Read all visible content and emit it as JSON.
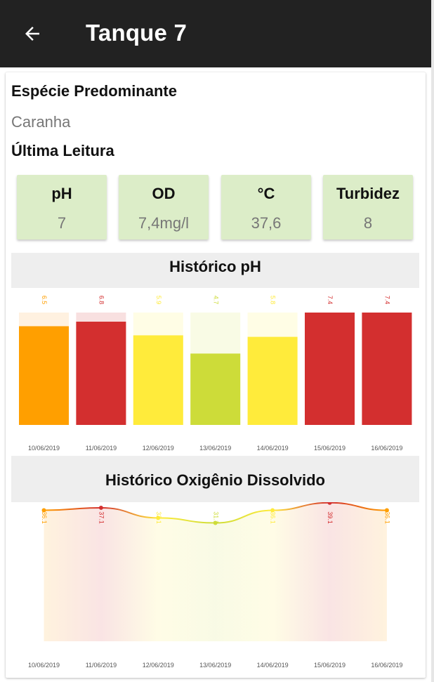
{
  "appbar": {
    "title": "Tanque 7",
    "back_icon": "arrow-left-icon"
  },
  "info": {
    "species_heading": "Espécie Predominante",
    "species_value": "Caranha",
    "last_reading_heading": "Última Leitura"
  },
  "readings": [
    {
      "label": "pH",
      "value": "7"
    },
    {
      "label": "OD",
      "value": "7,4mg/l"
    },
    {
      "label": "°C",
      "value": "37,6"
    },
    {
      "label": "Turbidez",
      "value": "8"
    }
  ],
  "colors": {
    "appbar": "#222222",
    "tile": "#dcedc8",
    "header_bg": "#eeeeee"
  },
  "chart_data": [
    {
      "type": "bar",
      "title": "Histórico pH",
      "categories": [
        "10/06/2019",
        "11/06/2019",
        "12/06/2019",
        "13/06/2019",
        "14/06/2019",
        "15/06/2019",
        "16/06/2019"
      ],
      "values": [
        6.5,
        6.8,
        5.9,
        4.7,
        5.8,
        7.4,
        7.4
      ],
      "value_labels": [
        "6.5",
        "6.8",
        "5.9",
        "4.7",
        "5.8",
        "7.4",
        "7.4"
      ],
      "ylim": [
        0,
        7.4
      ],
      "colors": [
        "#ff9f00",
        "#d32f2f",
        "#ffeb3b",
        "#cddc39",
        "#ffeb3b",
        "#d32f2f",
        "#d32f2f"
      ],
      "track_colors": [
        "#fff1e0",
        "#f8e0e0",
        "#fffde5",
        "#f9fbe5",
        "#fffde5",
        "#f8e0e0",
        "#f8e0e0"
      ]
    },
    {
      "type": "line",
      "title": "Histórico Oxigênio Dissolvido",
      "categories": [
        "10/06/2019",
        "11/06/2019",
        "12/06/2019",
        "13/06/2019",
        "14/06/2019",
        "15/06/2019",
        "16/06/2019"
      ],
      "values": [
        36.1,
        37.1,
        33.1,
        31.1,
        36.1,
        39.1,
        36.1
      ],
      "value_labels": [
        "36.1",
        "37.1",
        "33.1",
        "31.1",
        "36.1",
        "39.1",
        "36.1"
      ],
      "colors": [
        "#ff9f00",
        "#d32f2f",
        "#ffeb3b",
        "#cddc39",
        "#ffeb3b",
        "#d32f2f",
        "#ff9f00"
      ]
    }
  ]
}
